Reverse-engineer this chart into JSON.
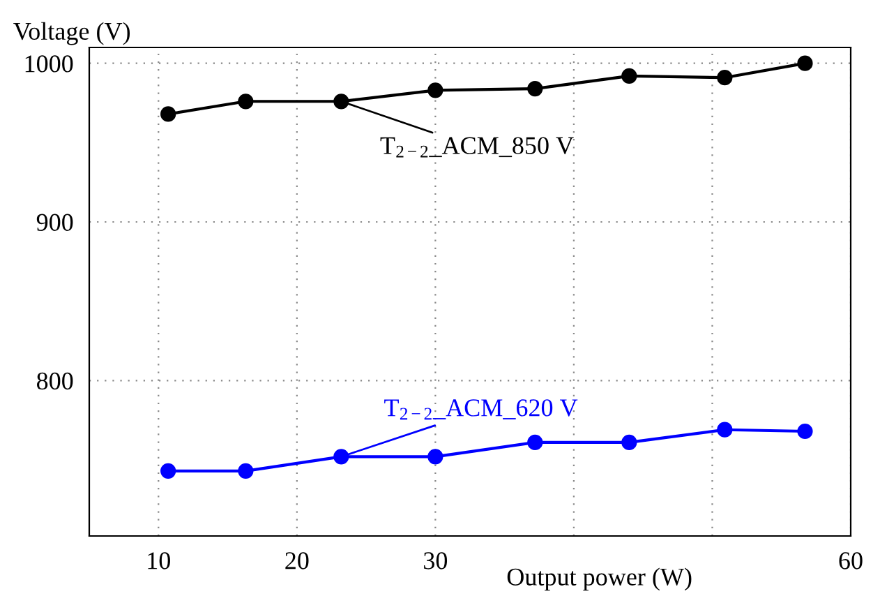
{
  "chart_data": {
    "type": "line",
    "xlabel": "Output power (W)",
    "ylabel": "Voltage (V)",
    "x": [
      10.7,
      16.3,
      23.2,
      30.0,
      37.2,
      44.0,
      50.9,
      56.7
    ],
    "series": [
      {
        "color": "#000000",
        "values": [
          968,
          976,
          976,
          983,
          984,
          992,
          991,
          1000
        ]
      },
      {
        "color": "#0000ff",
        "values": [
          743,
          743,
          752,
          752,
          761,
          761,
          769,
          768
        ]
      }
    ],
    "annotations": [
      {
        "text": "T$_{2−2}$_ACM_850 V",
        "x": 23.2,
        "y": 976
      },
      {
        "text": "T$_{2−2}$_ACM_620 V",
        "x": 23.2,
        "y": 752
      }
    ],
    "xlim": [
      5,
      60
    ],
    "xticks": [
      10,
      20,
      30,
      {
        "value": 40,
        "label": null
      },
      {
        "value": 50,
        "label": null
      },
      60
    ],
    "ylim": [
      702,
      1010
    ],
    "yticks": [
      800,
      900,
      1000
    ],
    "grid": true,
    "marker": "circle",
    "line_style": "solid"
  }
}
